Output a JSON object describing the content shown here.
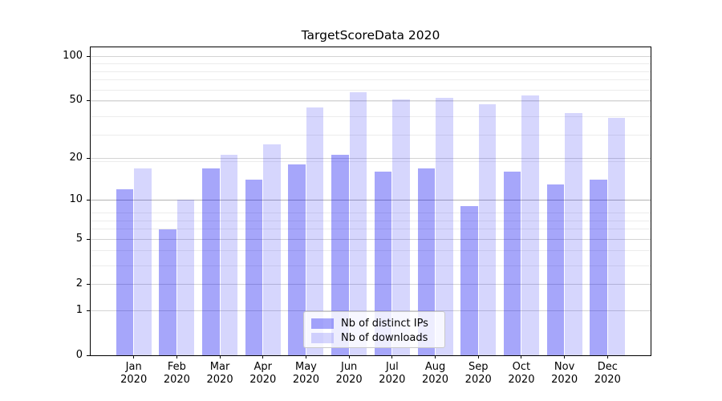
{
  "chart_data": {
    "type": "bar",
    "title": "TargetScoreData 2020",
    "categories": [
      "Jan 2020",
      "Feb 2020",
      "Mar 2020",
      "Apr 2020",
      "May 2020",
      "Jun 2020",
      "Jul 2020",
      "Aug 2020",
      "Sep 2020",
      "Oct 2020",
      "Nov 2020",
      "Dec 2020"
    ],
    "series": [
      {
        "name": "Nb of distinct IPs",
        "color": "rgba(0,0,240,0.35)",
        "values": [
          12,
          6,
          17,
          14,
          18,
          21,
          16,
          17,
          9,
          16,
          13,
          14
        ]
      },
      {
        "name": "Nb of downloads",
        "color": "rgba(0,0,240,0.16)",
        "values": [
          17,
          10,
          21,
          25,
          45,
          57,
          51,
          52,
          47,
          54,
          41,
          38
        ]
      }
    ],
    "xlabel": "",
    "ylabel": "",
    "yscale": "log1p",
    "yticks": [
      0,
      1,
      2,
      5,
      10,
      20,
      50,
      100
    ],
    "ytick_labels": [
      "0",
      "1",
      "2",
      "5",
      "10",
      "20",
      "50",
      "100"
    ],
    "minor_yticks": [
      1,
      2,
      3,
      4,
      5,
      6,
      7,
      8,
      19,
      29,
      39,
      49,
      59,
      69,
      79,
      89
    ],
    "ylim": [
      0,
      115
    ],
    "grid": true,
    "legend_position": "lower center",
    "colors": {
      "bar_dark": "rgba(0,0,240,0.35)",
      "bar_light": "rgba(0,0,240,0.16)"
    }
  }
}
